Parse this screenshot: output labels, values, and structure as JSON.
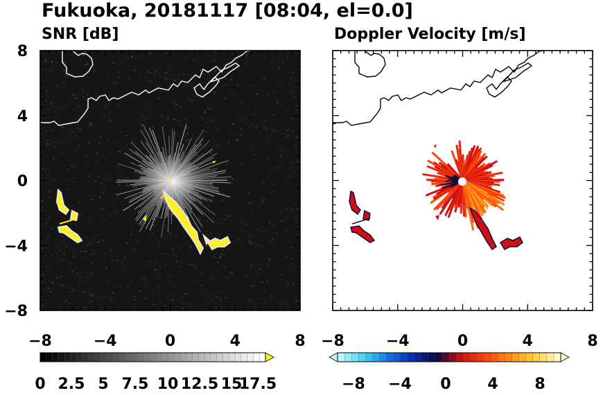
{
  "title": "Fukuoka, 20181117 [08:04, el=0.0]",
  "chart_data": [
    {
      "type": "heatmap",
      "title": "SNR [dB]",
      "xlim": [
        -8,
        8
      ],
      "ylim": [
        -8,
        8
      ],
      "x_ticks": [
        "−8",
        "−4",
        "0",
        "4",
        "8"
      ],
      "y_ticks": [
        "8",
        "4",
        "0",
        "−4",
        "−8"
      ],
      "grid": false,
      "colorbar": {
        "min": 0,
        "max": 18.5,
        "extend": "max",
        "tick_labels": [
          "0",
          "2.5",
          "5",
          "7.5",
          "10",
          "12.5",
          "15",
          "17.5"
        ],
        "tick_values": [
          0,
          2.5,
          5,
          7.5,
          10,
          12.5,
          15,
          17.5
        ],
        "colors": [
          "#000000",
          "#ffffff"
        ],
        "over_color": "#ffee22"
      },
      "background_color": "#161616",
      "coastline_color": "#ffffff",
      "echo_color": "#ffee22"
    },
    {
      "type": "heatmap",
      "title": "Doppler Velocity [m/s]",
      "xlim": [
        -8,
        8
      ],
      "ylim": [
        -8,
        8
      ],
      "x_ticks": [
        "−8",
        "−4",
        "0",
        "4",
        "8"
      ],
      "y_ticks": [
        "8",
        "4",
        "0",
        "−4",
        "−8"
      ],
      "grid": false,
      "colorbar": {
        "min": -10,
        "max": 10,
        "extend": "both",
        "tick_labels": [
          "−8",
          "−4",
          "0",
          "4",
          "8"
        ],
        "tick_values": [
          -8,
          -4,
          0,
          4,
          8
        ],
        "colors": [
          "#bff4ff",
          "#3fd0f0",
          "#1a70e0",
          "#0a2aa0",
          "#0a0a40",
          "#d01010",
          "#ff4010",
          "#ff8c10",
          "#ffd030",
          "#fff7c8"
        ]
      },
      "background_color": "#ffffff",
      "coastline_color": "#000000"
    }
  ]
}
